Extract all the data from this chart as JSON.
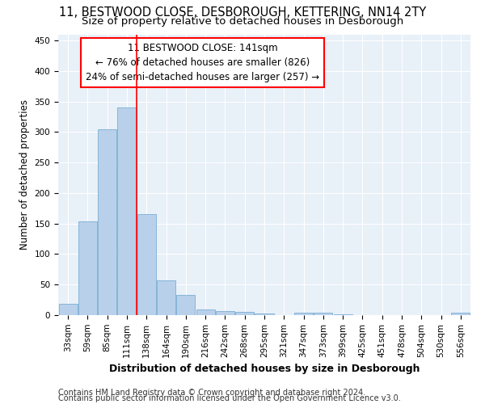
{
  "title1": "11, BESTWOOD CLOSE, DESBOROUGH, KETTERING, NN14 2TY",
  "title2": "Size of property relative to detached houses in Desborough",
  "xlabel": "Distribution of detached houses by size in Desborough",
  "ylabel": "Number of detached properties",
  "footer1": "Contains HM Land Registry data © Crown copyright and database right 2024.",
  "footer2": "Contains public sector information licensed under the Open Government Licence v3.0.",
  "categories": [
    "33sqm",
    "59sqm",
    "85sqm",
    "111sqm",
    "138sqm",
    "164sqm",
    "190sqm",
    "216sqm",
    "242sqm",
    "268sqm",
    "295sqm",
    "321sqm",
    "347sqm",
    "373sqm",
    "399sqm",
    "425sqm",
    "451sqm",
    "478sqm",
    "504sqm",
    "530sqm",
    "556sqm"
  ],
  "values": [
    18,
    153,
    305,
    340,
    165,
    57,
    33,
    9,
    7,
    5,
    3,
    0,
    4,
    4,
    1,
    0,
    0,
    0,
    0,
    0,
    4
  ],
  "bar_color": "#b8d0ea",
  "bar_edge_color": "#7aadd4",
  "vline_index": 3.5,
  "annotation_line1": "11 BESTWOOD CLOSE: 141sqm",
  "annotation_line2": "← 76% of detached houses are smaller (826)",
  "annotation_line3": "24% of semi-detached houses are larger (257) →",
  "annotation_box_color": "white",
  "annotation_box_edge_color": "red",
  "vline_color": "red",
  "ylim": [
    0,
    460
  ],
  "yticks": [
    0,
    50,
    100,
    150,
    200,
    250,
    300,
    350,
    400,
    450
  ],
  "bg_color": "#e8f0f8",
  "grid_color": "white",
  "title1_fontsize": 10.5,
  "title2_fontsize": 9.5,
  "xlabel_fontsize": 9,
  "ylabel_fontsize": 8.5,
  "tick_fontsize": 7.5,
  "footer_fontsize": 7,
  "annotation_fontsize": 8.5
}
